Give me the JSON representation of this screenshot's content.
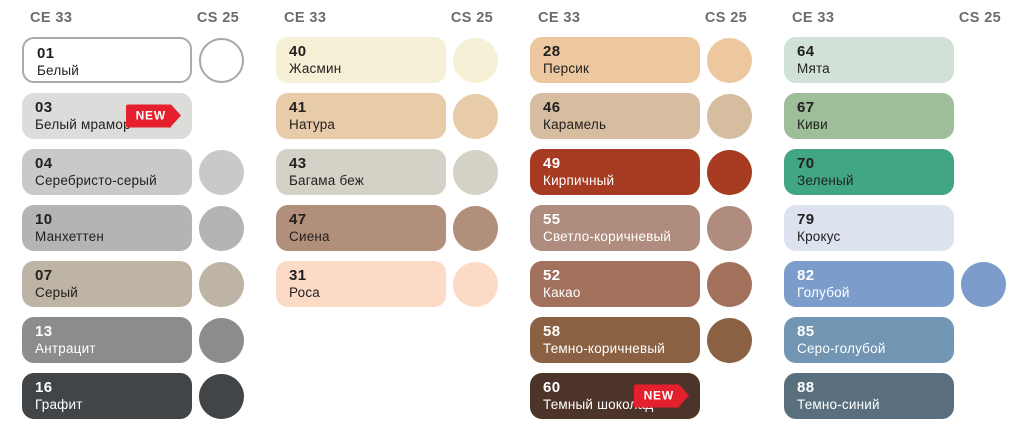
{
  "palette": {
    "header_left": "CE 33",
    "header_right": "CS 25",
    "new_badge_label": "NEW",
    "colors": {
      "header_text": "#6a6c6e",
      "badge_red": "#e4202e",
      "outline_gray": "#a9a9a9",
      "text_dark": "#232020",
      "text_light": "#ffffff"
    },
    "columns": [
      {
        "items": [
          {
            "code": "01",
            "name": "Белый",
            "color": "#ffffff",
            "outlined": true,
            "text": "dark",
            "cs25": true,
            "new": false
          },
          {
            "code": "03",
            "name": "Белый мрамор",
            "color": "#dcdcda",
            "outlined": false,
            "text": "dark",
            "cs25": false,
            "new": true
          },
          {
            "code": "04",
            "name": "Серебристо-серый",
            "color": "#c8cac8",
            "outlined": false,
            "text": "dark",
            "cs25": true,
            "new": false
          },
          {
            "code": "10",
            "name": "Манхеттен",
            "color": "#b2b5b3",
            "outlined": false,
            "text": "dark",
            "cs25": true,
            "new": false
          },
          {
            "code": "07",
            "name": "Серый",
            "color": "#bdb4a5",
            "outlined": false,
            "text": "dark",
            "cs25": true,
            "new": false
          },
          {
            "code": "13",
            "name": "Антрацит",
            "color": "#8c8c8a",
            "outlined": false,
            "text": "light",
            "cs25": true,
            "new": false
          },
          {
            "code": "16",
            "name": "Графит",
            "color": "#414548",
            "outlined": false,
            "text": "light",
            "cs25": true,
            "new": false
          }
        ]
      },
      {
        "items": [
          {
            "code": "40",
            "name": "Жасмин",
            "color": "#f6f0d7",
            "outlined": false,
            "text": "dark",
            "cs25": true,
            "new": false
          },
          {
            "code": "41",
            "name": "Натура",
            "color": "#e8cba9",
            "outlined": false,
            "text": "dark",
            "cs25": true,
            "new": false
          },
          {
            "code": "43",
            "name": "Багама беж",
            "color": "#d4d2c6",
            "outlined": false,
            "text": "dark",
            "cs25": true,
            "new": false
          },
          {
            "code": "47",
            "name": "Сиена",
            "color": "#b28f7b",
            "outlined": false,
            "text": "dark",
            "cs25": true,
            "new": false
          },
          {
            "code": "31",
            "name": "Роса",
            "color": "#fcdac6",
            "outlined": false,
            "text": "dark",
            "cs25": true,
            "new": false
          }
        ]
      },
      {
        "items": [
          {
            "code": "28",
            "name": "Персик",
            "color": "#edc79f",
            "outlined": false,
            "text": "dark",
            "cs25": true,
            "new": false
          },
          {
            "code": "46",
            "name": "Карамель",
            "color": "#d6bda0",
            "outlined": false,
            "text": "dark",
            "cs25": true,
            "new": false
          },
          {
            "code": "49",
            "name": "Кирпичный",
            "color": "#a63b21",
            "outlined": false,
            "text": "light",
            "cs25": true,
            "new": false
          },
          {
            "code": "55",
            "name": "Светло-коричневый",
            "color": "#af8c7d",
            "outlined": false,
            "text": "light",
            "cs25": true,
            "new": false
          },
          {
            "code": "52",
            "name": "Какао",
            "color": "#a2715c",
            "outlined": false,
            "text": "light",
            "cs25": true,
            "new": false
          },
          {
            "code": "58",
            "name": "Темно-коричневый",
            "color": "#8a6142",
            "outlined": false,
            "text": "light",
            "cs25": true,
            "new": false
          },
          {
            "code": "60",
            "name": "Темный шоколад",
            "color": "#4d342b",
            "outlined": false,
            "text": "light",
            "cs25": false,
            "new": true
          }
        ]
      },
      {
        "items": [
          {
            "code": "64",
            "name": "Мята",
            "color": "#d1e1d8",
            "outlined": false,
            "text": "dark",
            "cs25": false,
            "new": false
          },
          {
            "code": "67",
            "name": "Киви",
            "color": "#9ebd99",
            "outlined": false,
            "text": "dark",
            "cs25": false,
            "new": false
          },
          {
            "code": "70",
            "name": "Зеленый",
            "color": "#41a685",
            "outlined": false,
            "text": "dark",
            "cs25": false,
            "new": false
          },
          {
            "code": "79",
            "name": "Крокус",
            "color": "#dde3ee",
            "outlined": false,
            "text": "dark",
            "cs25": false,
            "new": false
          },
          {
            "code": "82",
            "name": "Голубой",
            "color": "#7c9dcb",
            "outlined": false,
            "text": "light",
            "cs25": true,
            "new": false
          },
          {
            "code": "85",
            "name": "Серо-голубой",
            "color": "#7295b4",
            "outlined": false,
            "text": "light",
            "cs25": false,
            "new": false
          },
          {
            "code": "88",
            "name": "Темно-синий",
            "color": "#5a6f7d",
            "outlined": false,
            "text": "light",
            "cs25": false,
            "new": false
          }
        ]
      }
    ]
  }
}
